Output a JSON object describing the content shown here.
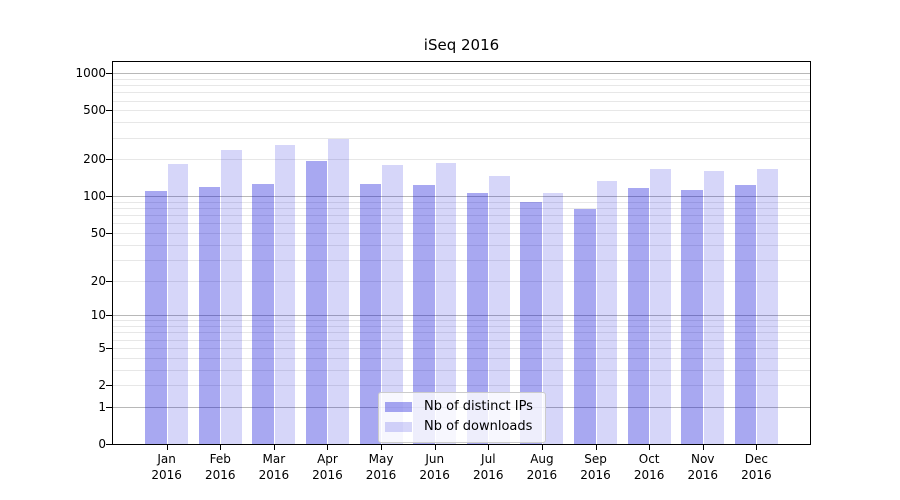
{
  "title": "iSeq 2016",
  "chart_data": {
    "type": "bar",
    "title": "iSeq 2016",
    "categories": [
      "Jan",
      "Feb",
      "Mar",
      "Apr",
      "May",
      "Jun",
      "Jul",
      "Aug",
      "Sep",
      "Oct",
      "Nov",
      "Dec"
    ],
    "category_year": "2016",
    "series": [
      {
        "name": "Nb of distinct IPs",
        "values": [
          110,
          119,
          125,
          194,
          127,
          123,
          106,
          90,
          79,
          116,
          113,
          124
        ],
        "fill": "rgba(0,0,215,0.34)"
      },
      {
        "name": "Nb of downloads",
        "values": [
          182,
          237,
          261,
          291,
          179,
          187,
          148,
          106,
          133,
          166,
          161,
          167
        ],
        "fill": "rgba(0,0,215,0.16)"
      }
    ],
    "xlabel": "",
    "ylabel": "",
    "yscale": "log10(value+1)",
    "ylim": [
      0,
      1234
    ],
    "yticks": [
      0,
      1,
      2,
      5,
      10,
      20,
      50,
      100,
      200,
      500,
      1000
    ],
    "major_gridlines": [
      1,
      10,
      100,
      1000
    ],
    "minor_gridlines": [
      2,
      3,
      4,
      5,
      6,
      7,
      8,
      9,
      20,
      30,
      40,
      50,
      60,
      70,
      80,
      90,
      200,
      300,
      400,
      500,
      600,
      700,
      800,
      900
    ],
    "grid": true,
    "legend_position": "lower center"
  },
  "colors": {
    "background": "#ffffff",
    "spine": "#000000",
    "grid_major": "#b8b8b8",
    "grid_minor": "#e7e7e7",
    "text": "#000000",
    "legend_border": "#cccccc",
    "legend_bg": "rgba(255,255,255,0.8)"
  }
}
